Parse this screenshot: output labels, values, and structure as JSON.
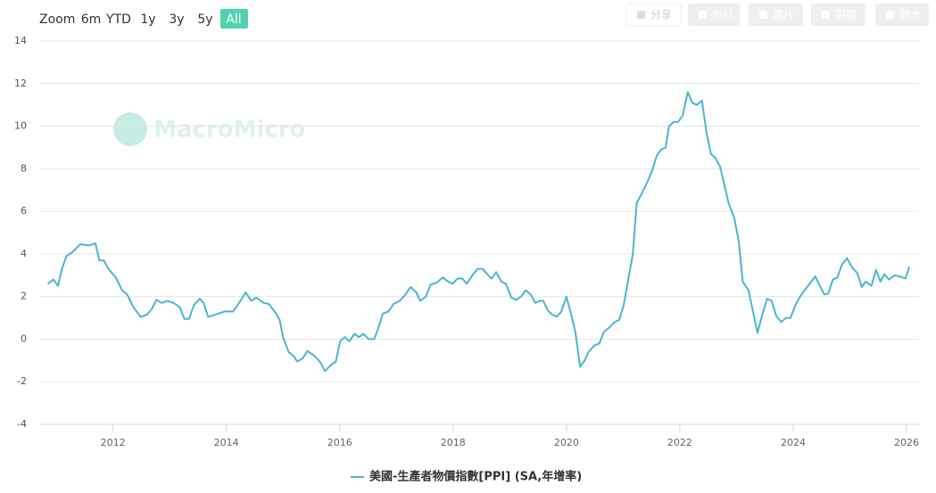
{
  "toolbar": {
    "zoom_label": "Zoom",
    "ranges": [
      "6m",
      "YTD",
      "1y",
      "3y",
      "5y",
      "All"
    ],
    "active_range": "All",
    "buttons": [
      "分享",
      "自訂",
      "圖片",
      "製圖",
      "放大"
    ]
  },
  "watermark": "MacroMicro",
  "chart_data": {
    "type": "line",
    "x": [
      2010.85,
      2010.95,
      2011.03,
      2011.1,
      2011.18,
      2011.29,
      2011.42,
      2011.58,
      2011.69,
      2011.76,
      2011.84,
      2011.92,
      2012.05,
      2012.16,
      2012.25,
      2012.36,
      2012.49,
      2012.6,
      2012.68,
      2012.77,
      2012.86,
      2012.96,
      2013.07,
      2013.18,
      2013.26,
      2013.34,
      2013.43,
      2013.53,
      2013.6,
      2013.68,
      2013.86,
      2013.97,
      2014.12,
      2014.25,
      2014.34,
      2014.44,
      2014.53,
      2014.66,
      2014.75,
      2014.88,
      2014.94,
      2015.0,
      2015.1,
      2015.19,
      2015.25,
      2015.35,
      2015.43,
      2015.51,
      2015.6,
      2015.66,
      2015.74,
      2015.85,
      2015.93,
      2016.01,
      2016.09,
      2016.17,
      2016.26,
      2016.34,
      2016.42,
      2016.51,
      2016.61,
      2016.69,
      2016.76,
      2016.86,
      2016.95,
      2017.06,
      2017.16,
      2017.25,
      2017.35,
      2017.42,
      2017.52,
      2017.6,
      2017.71,
      2017.82,
      2017.91,
      2017.99,
      2018.08,
      2018.16,
      2018.24,
      2018.34,
      2018.43,
      2018.52,
      2018.62,
      2018.68,
      2018.76,
      2018.85,
      2018.93,
      2019.03,
      2019.12,
      2019.2,
      2019.28,
      2019.37,
      2019.45,
      2019.53,
      2019.59,
      2019.67,
      2019.75,
      2019.83,
      2019.91,
      2020.0,
      2020.08,
      2020.16,
      2020.24,
      2020.32,
      2020.39,
      2020.49,
      2020.58,
      2020.66,
      2020.76,
      2020.85,
      2020.93,
      2021.01,
      2021.09,
      2021.17,
      2021.24,
      2021.34,
      2021.43,
      2021.51,
      2021.59,
      2021.67,
      2021.75,
      2021.81,
      2021.89,
      2021.97,
      2022.05,
      2022.14,
      2022.22,
      2022.3,
      2022.39,
      2022.47,
      2022.55,
      2022.63,
      2022.71,
      2022.78,
      2022.86,
      2022.96,
      2023.04,
      2023.11,
      2023.21,
      2023.29,
      2023.37,
      2023.46,
      2023.54,
      2023.62,
      2023.7,
      2023.79,
      2023.87,
      2023.95,
      2024.04,
      2024.12,
      2024.2,
      2024.29,
      2024.39,
      2024.47,
      2024.55,
      2024.62,
      2024.7,
      2024.78,
      2024.86,
      2024.95,
      2025.03,
      2025.13,
      2025.21,
      2025.28,
      2025.38,
      2025.46,
      2025.54,
      2025.61,
      2025.69,
      2025.79,
      2025.88,
      2025.98,
      2026.05
    ],
    "series": [
      {
        "name": "美國-生產者物價指數[PPI] (SA,年增率)",
        "color": "#4bb6d3",
        "values": [
          2.6,
          2.8,
          2.5,
          3.3,
          3.9,
          4.1,
          4.45,
          4.4,
          4.5,
          3.7,
          3.7,
          3.3,
          2.9,
          2.3,
          2.1,
          1.5,
          1.05,
          1.15,
          1.4,
          1.85,
          1.7,
          1.8,
          1.7,
          1.5,
          0.95,
          0.95,
          1.6,
          1.9,
          1.7,
          1.05,
          1.2,
          1.3,
          1.3,
          1.8,
          2.2,
          1.8,
          1.95,
          1.7,
          1.65,
          1.2,
          0.9,
          0.1,
          -0.6,
          -0.8,
          -1.05,
          -0.9,
          -0.55,
          -0.7,
          -0.9,
          -1.1,
          -1.5,
          -1.2,
          -1.05,
          -0.1,
          0.1,
          -0.1,
          0.25,
          0.1,
          0.25,
          0.0,
          0.0,
          0.6,
          1.2,
          1.3,
          1.65,
          1.8,
          2.1,
          2.45,
          2.2,
          1.8,
          2.0,
          2.55,
          2.65,
          2.9,
          2.7,
          2.6,
          2.85,
          2.85,
          2.6,
          3.0,
          3.3,
          3.3,
          3.0,
          2.85,
          3.15,
          2.7,
          2.6,
          1.95,
          1.85,
          2.0,
          2.3,
          2.1,
          1.7,
          1.8,
          1.8,
          1.35,
          1.15,
          1.05,
          1.3,
          2.0,
          1.2,
          0.3,
          -1.3,
          -1.0,
          -0.6,
          -0.3,
          -0.2,
          0.35,
          0.55,
          0.8,
          0.9,
          1.6,
          2.8,
          4.0,
          6.4,
          6.9,
          7.4,
          7.9,
          8.6,
          8.9,
          9.0,
          10.0,
          10.2,
          10.2,
          10.5,
          11.6,
          11.1,
          11.0,
          11.2,
          9.7,
          8.7,
          8.5,
          8.1,
          7.3,
          6.4,
          5.7,
          4.6,
          2.7,
          2.3,
          1.3,
          0.3,
          1.2,
          1.9,
          1.8,
          1.1,
          0.8,
          1.0,
          1.0,
          1.6,
          2.0,
          2.3,
          2.6,
          2.95,
          2.5,
          2.1,
          2.15,
          2.8,
          2.9,
          3.5,
          3.8,
          3.4,
          3.1,
          2.45,
          2.7,
          2.5,
          3.25,
          2.7,
          3.05,
          2.8,
          3.0,
          2.95,
          2.85,
          3.4
        ]
      }
    ],
    "xlim": [
      2010.7,
      2026.22
    ],
    "xticks": [
      2012,
      2014,
      2016,
      2018,
      2020,
      2022,
      2024,
      2026
    ],
    "ylim": [
      -4,
      14
    ],
    "yticks": [
      -4,
      -2,
      0,
      2,
      4,
      6,
      8,
      10,
      12,
      14
    ],
    "grid": true,
    "legend": "bottom"
  }
}
